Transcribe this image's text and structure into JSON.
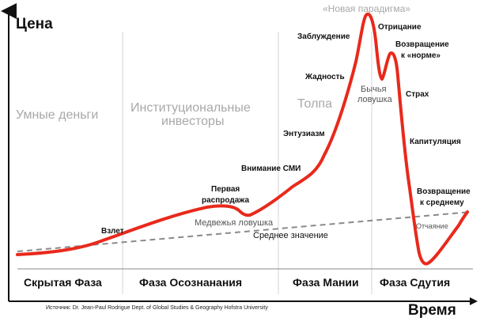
{
  "axes": {
    "y_title": "Цена",
    "x_title": "Время"
  },
  "phase_headings": {
    "smart_money": "Умные деньги",
    "institutional_line1": "Институциональные",
    "institutional_line2": "инвесторы",
    "crowd": "Толпа"
  },
  "phases_bottom": {
    "stealth": "Скрытая Фаза",
    "awareness": "Фаза Осознанания",
    "mania": "Фаза Мании",
    "blowoff": "Фаза Сдутия"
  },
  "stages": {
    "takeoff": "Взлет",
    "first_sellout_line1": "Первая",
    "first_sellout_line2": "распродажа",
    "media_attention": "Внимание СМИ",
    "enthusiasm": "Энтузиазм",
    "greed": "Жадность",
    "delusion": "Заблуждение",
    "new_paradigm": "«Новая парадигма»",
    "denial": "Отрицание",
    "return_normal_line1": "Возвращение",
    "return_normal_line2": "к «норме»",
    "fear": "Страх",
    "capitulation": "Капитуляция",
    "return_mean_line1": "Возвращение",
    "return_mean_line2": "к среднему",
    "despair": "Отчаяние"
  },
  "traps": {
    "bull_line1": "Бычья",
    "bull_line2": "ловушка",
    "bear": "Медвежья ловушка"
  },
  "mean_label": "Среднее значение",
  "source": "Источник: Dr. Jean-Paul Rodrigue Dept. of Global Studies & Geography Hofstra University",
  "colors": {
    "curve": "#e8291c",
    "mean_line": "#8a8a8a",
    "divider": "#d0d0d0",
    "axis": "#111111"
  }
}
